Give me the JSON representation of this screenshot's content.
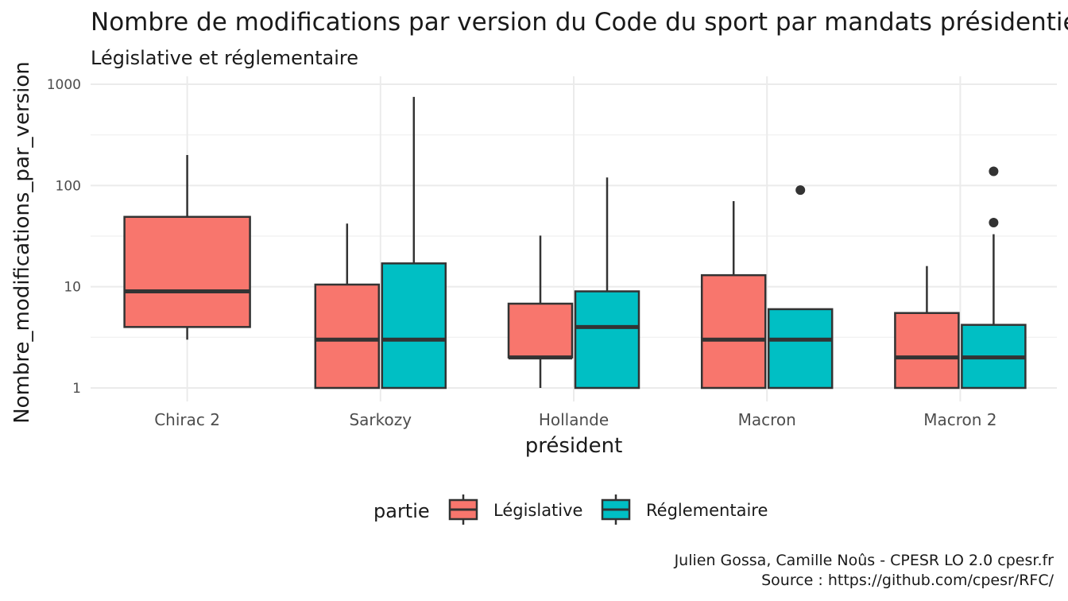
{
  "chart_data": {
    "type": "boxplot",
    "title": "Nombre de modifications par version du Code du sport par mandats présidentiels",
    "subtitle": "Législative et réglementaire",
    "xlabel": "président",
    "ylabel": "Nombre_modifications_par_version",
    "y_scale": "log10",
    "ylim": [
      0.9,
      1000
    ],
    "y_ticks": [
      1,
      10,
      100,
      1000
    ],
    "y_tick_labels": [
      "1",
      "10",
      "100",
      "1000"
    ],
    "grid": true,
    "categories": [
      "Chirac 2",
      "Sarkozy",
      "Hollande",
      "Macron",
      "Macron 2"
    ],
    "legend": {
      "title": "partie",
      "position": "bottom",
      "entries": [
        "Législative",
        "Réglementaire"
      ]
    },
    "series": [
      {
        "name": "Législative",
        "color": "#F8766D",
        "boxes": [
          {
            "category": "Chirac 2",
            "whisker_low": 3,
            "q1": 4,
            "median": 9,
            "q3": 49,
            "whisker_high": 200,
            "outliers": []
          },
          {
            "category": "Sarkozy",
            "whisker_low": 1,
            "q1": 1,
            "median": 3,
            "q3": 10.5,
            "whisker_high": 42,
            "outliers": []
          },
          {
            "category": "Hollande",
            "whisker_low": 1,
            "q1": 2,
            "median": 2,
            "q3": 6.8,
            "whisker_high": 32,
            "outliers": []
          },
          {
            "category": "Macron",
            "whisker_low": 1,
            "q1": 1,
            "median": 3,
            "q3": 13,
            "whisker_high": 70,
            "outliers": []
          },
          {
            "category": "Macron 2",
            "whisker_low": 1,
            "q1": 1,
            "median": 2,
            "q3": 5.5,
            "whisker_high": 16,
            "outliers": []
          }
        ]
      },
      {
        "name": "Réglementaire",
        "color": "#00BFC4",
        "boxes": [
          {
            "category": "Sarkozy",
            "whisker_low": 1,
            "q1": 1,
            "median": 3,
            "q3": 17,
            "whisker_high": 750,
            "outliers": []
          },
          {
            "category": "Hollande",
            "whisker_low": 1,
            "q1": 1,
            "median": 4,
            "q3": 9,
            "whisker_high": 120,
            "outliers": []
          },
          {
            "category": "Macron",
            "whisker_low": 1,
            "q1": 1,
            "median": 3,
            "q3": 6,
            "whisker_high": 6,
            "outliers": [
              90
            ]
          },
          {
            "category": "Macron 2",
            "whisker_low": 1,
            "q1": 1,
            "median": 2,
            "q3": 4.2,
            "whisker_high": 33,
            "outliers": [
              43,
              138
            ]
          }
        ]
      }
    ]
  },
  "caption": {
    "line1": "Julien Gossa, Camille Noûs - CPESR LO 2.0 cpesr.fr",
    "line2": "Source : https://github.com/cpesr/RFC/"
  }
}
